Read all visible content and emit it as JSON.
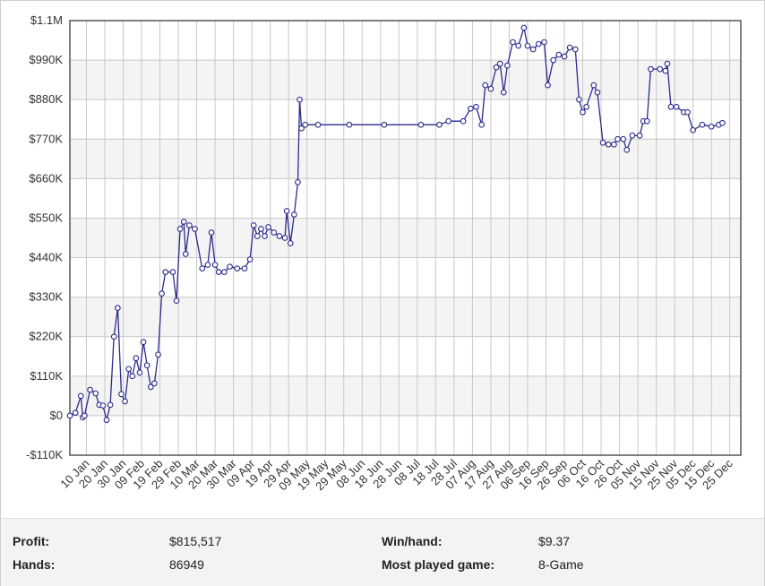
{
  "chart_data": {
    "type": "line",
    "title": "",
    "xlabel": "",
    "ylabel": "",
    "ylim": [
      -110000,
      1100000
    ],
    "y_ticks": [
      -110000,
      0,
      110000,
      220000,
      330000,
      440000,
      550000,
      660000,
      770000,
      880000,
      990000,
      1100000
    ],
    "y_tick_labels": [
      "-$110K",
      "$0",
      "$110K",
      "$220K",
      "$330K",
      "$440K",
      "$550K",
      "$660K",
      "$770K",
      "$880K",
      "$990K",
      "$1.1M"
    ],
    "x_ticks": [
      "10 Jan",
      "20 Jan",
      "30 Jan",
      "09 Feb",
      "19 Feb",
      "29 Feb",
      "10 Mar",
      "20 Mar",
      "30 Mar",
      "09 Apr",
      "19 Apr",
      "29 Apr",
      "09 May",
      "19 May",
      "29 May",
      "08 Jun",
      "18 Jun",
      "28 Jun",
      "08 Jul",
      "18 Jul",
      "28 Jul",
      "07 Aug",
      "17 Aug",
      "27 Aug",
      "06 Sep",
      "16 Sep",
      "26 Sep",
      "06 Oct",
      "16 Oct",
      "26 Oct",
      "05 Nov",
      "15 Nov",
      "25 Nov",
      "05 Dec",
      "15 Dec",
      "25 Dec"
    ],
    "grid": true,
    "line_color": "#2b2b8c",
    "series": [
      {
        "values": [
          [
            "01 Jan",
            0
          ],
          [
            "04 Jan",
            8000
          ],
          [
            "07 Jan",
            55000
          ],
          [
            "08 Jan",
            -5000
          ],
          [
            "09 Jan",
            0
          ],
          [
            "12 Jan",
            72000
          ],
          [
            "15 Jan",
            62000
          ],
          [
            "17 Jan",
            30000
          ],
          [
            "19 Jan",
            28000
          ],
          [
            "21 Jan",
            -12000
          ],
          [
            "23 Jan",
            30000
          ],
          [
            "25 Jan",
            220000
          ],
          [
            "27 Jan",
            300000
          ],
          [
            "29 Jan",
            60000
          ],
          [
            "31 Jan",
            40000
          ],
          [
            "02 Feb",
            130000
          ],
          [
            "04 Feb",
            110000
          ],
          [
            "06 Feb",
            160000
          ],
          [
            "08 Feb",
            120000
          ],
          [
            "10 Feb",
            205000
          ],
          [
            "12 Feb",
            140000
          ],
          [
            "14 Feb",
            80000
          ],
          [
            "16 Feb",
            90000
          ],
          [
            "18 Feb",
            170000
          ],
          [
            "20 Feb",
            340000
          ],
          [
            "22 Feb",
            400000
          ],
          [
            "26 Feb",
            400000
          ],
          [
            "28 Feb",
            320000
          ],
          [
            "01 Mar",
            520000
          ],
          [
            "03 Mar",
            540000
          ],
          [
            "04 Mar",
            450000
          ],
          [
            "06 Mar",
            530000
          ],
          [
            "09 Mar",
            520000
          ],
          [
            "13 Mar",
            410000
          ],
          [
            "16 Mar",
            420000
          ],
          [
            "18 Mar",
            510000
          ],
          [
            "20 Mar",
            420000
          ],
          [
            "22 Mar",
            400000
          ],
          [
            "25 Mar",
            400000
          ],
          [
            "28 Mar",
            415000
          ],
          [
            "01 Apr",
            410000
          ],
          [
            "05 Apr",
            410000
          ],
          [
            "08 Apr",
            435000
          ],
          [
            "10 Apr",
            530000
          ],
          [
            "12 Apr",
            500000
          ],
          [
            "14 Apr",
            520000
          ],
          [
            "16 Apr",
            500000
          ],
          [
            "18 Apr",
            525000
          ],
          [
            "21 Apr",
            510000
          ],
          [
            "24 Apr",
            500000
          ],
          [
            "27 Apr",
            495000
          ],
          [
            "28 Apr",
            570000
          ],
          [
            "30 Apr",
            480000
          ],
          [
            "02 May",
            560000
          ],
          [
            "04 May",
            650000
          ],
          [
            "05 May",
            880000
          ],
          [
            "06 May",
            800000
          ],
          [
            "08 May",
            810000
          ],
          [
            "15 May",
            810000
          ],
          [
            "01 Jun",
            810000
          ],
          [
            "20 Jun",
            810000
          ],
          [
            "10 Jul",
            810000
          ],
          [
            "20 Jul",
            810000
          ],
          [
            "25 Jul",
            820000
          ],
          [
            "02 Aug",
            820000
          ],
          [
            "06 Aug",
            855000
          ],
          [
            "09 Aug",
            860000
          ],
          [
            "12 Aug",
            810000
          ],
          [
            "14 Aug",
            920000
          ],
          [
            "17 Aug",
            910000
          ],
          [
            "20 Aug",
            970000
          ],
          [
            "22 Aug",
            980000
          ],
          [
            "24 Aug",
            900000
          ],
          [
            "26 Aug",
            975000
          ],
          [
            "29 Aug",
            1040000
          ],
          [
            "01 Sep",
            1030000
          ],
          [
            "04 Sep",
            1080000
          ],
          [
            "06 Sep",
            1030000
          ],
          [
            "09 Sep",
            1020000
          ],
          [
            "12 Sep",
            1035000
          ],
          [
            "15 Sep",
            1040000
          ],
          [
            "17 Sep",
            920000
          ],
          [
            "20 Sep",
            990000
          ],
          [
            "23 Sep",
            1005000
          ],
          [
            "26 Sep",
            1000000
          ],
          [
            "29 Sep",
            1025000
          ],
          [
            "02 Oct",
            1020000
          ],
          [
            "04 Oct",
            880000
          ],
          [
            "06 Oct",
            845000
          ],
          [
            "08 Oct",
            860000
          ],
          [
            "12 Oct",
            920000
          ],
          [
            "14 Oct",
            900000
          ],
          [
            "17 Oct",
            760000
          ],
          [
            "20 Oct",
            755000
          ],
          [
            "23 Oct",
            755000
          ],
          [
            "25 Oct",
            770000
          ],
          [
            "28 Oct",
            770000
          ],
          [
            "30 Oct",
            740000
          ],
          [
            "02 Nov",
            780000
          ],
          [
            "06 Nov",
            780000
          ],
          [
            "08 Nov",
            820000
          ],
          [
            "10 Nov",
            820000
          ],
          [
            "12 Nov",
            965000
          ],
          [
            "17 Nov",
            965000
          ],
          [
            "20 Nov",
            960000
          ],
          [
            "21 Nov",
            980000
          ],
          [
            "23 Nov",
            860000
          ],
          [
            "26 Nov",
            860000
          ],
          [
            "30 Nov",
            845000
          ],
          [
            "02 Dec",
            845000
          ],
          [
            "05 Dec",
            795000
          ],
          [
            "10 Dec",
            810000
          ],
          [
            "15 Dec",
            805000
          ],
          [
            "19 Dec",
            810000
          ],
          [
            "21 Dec",
            815000
          ]
        ]
      }
    ]
  },
  "stats": {
    "profit_label": "Profit:",
    "profit_value": "$815,517",
    "hands_label": "Hands:",
    "hands_value": "86949",
    "winhand_label": "Win/hand:",
    "winhand_value": "$9.37",
    "game_label": "Most played game:",
    "game_value": "8-Game"
  }
}
